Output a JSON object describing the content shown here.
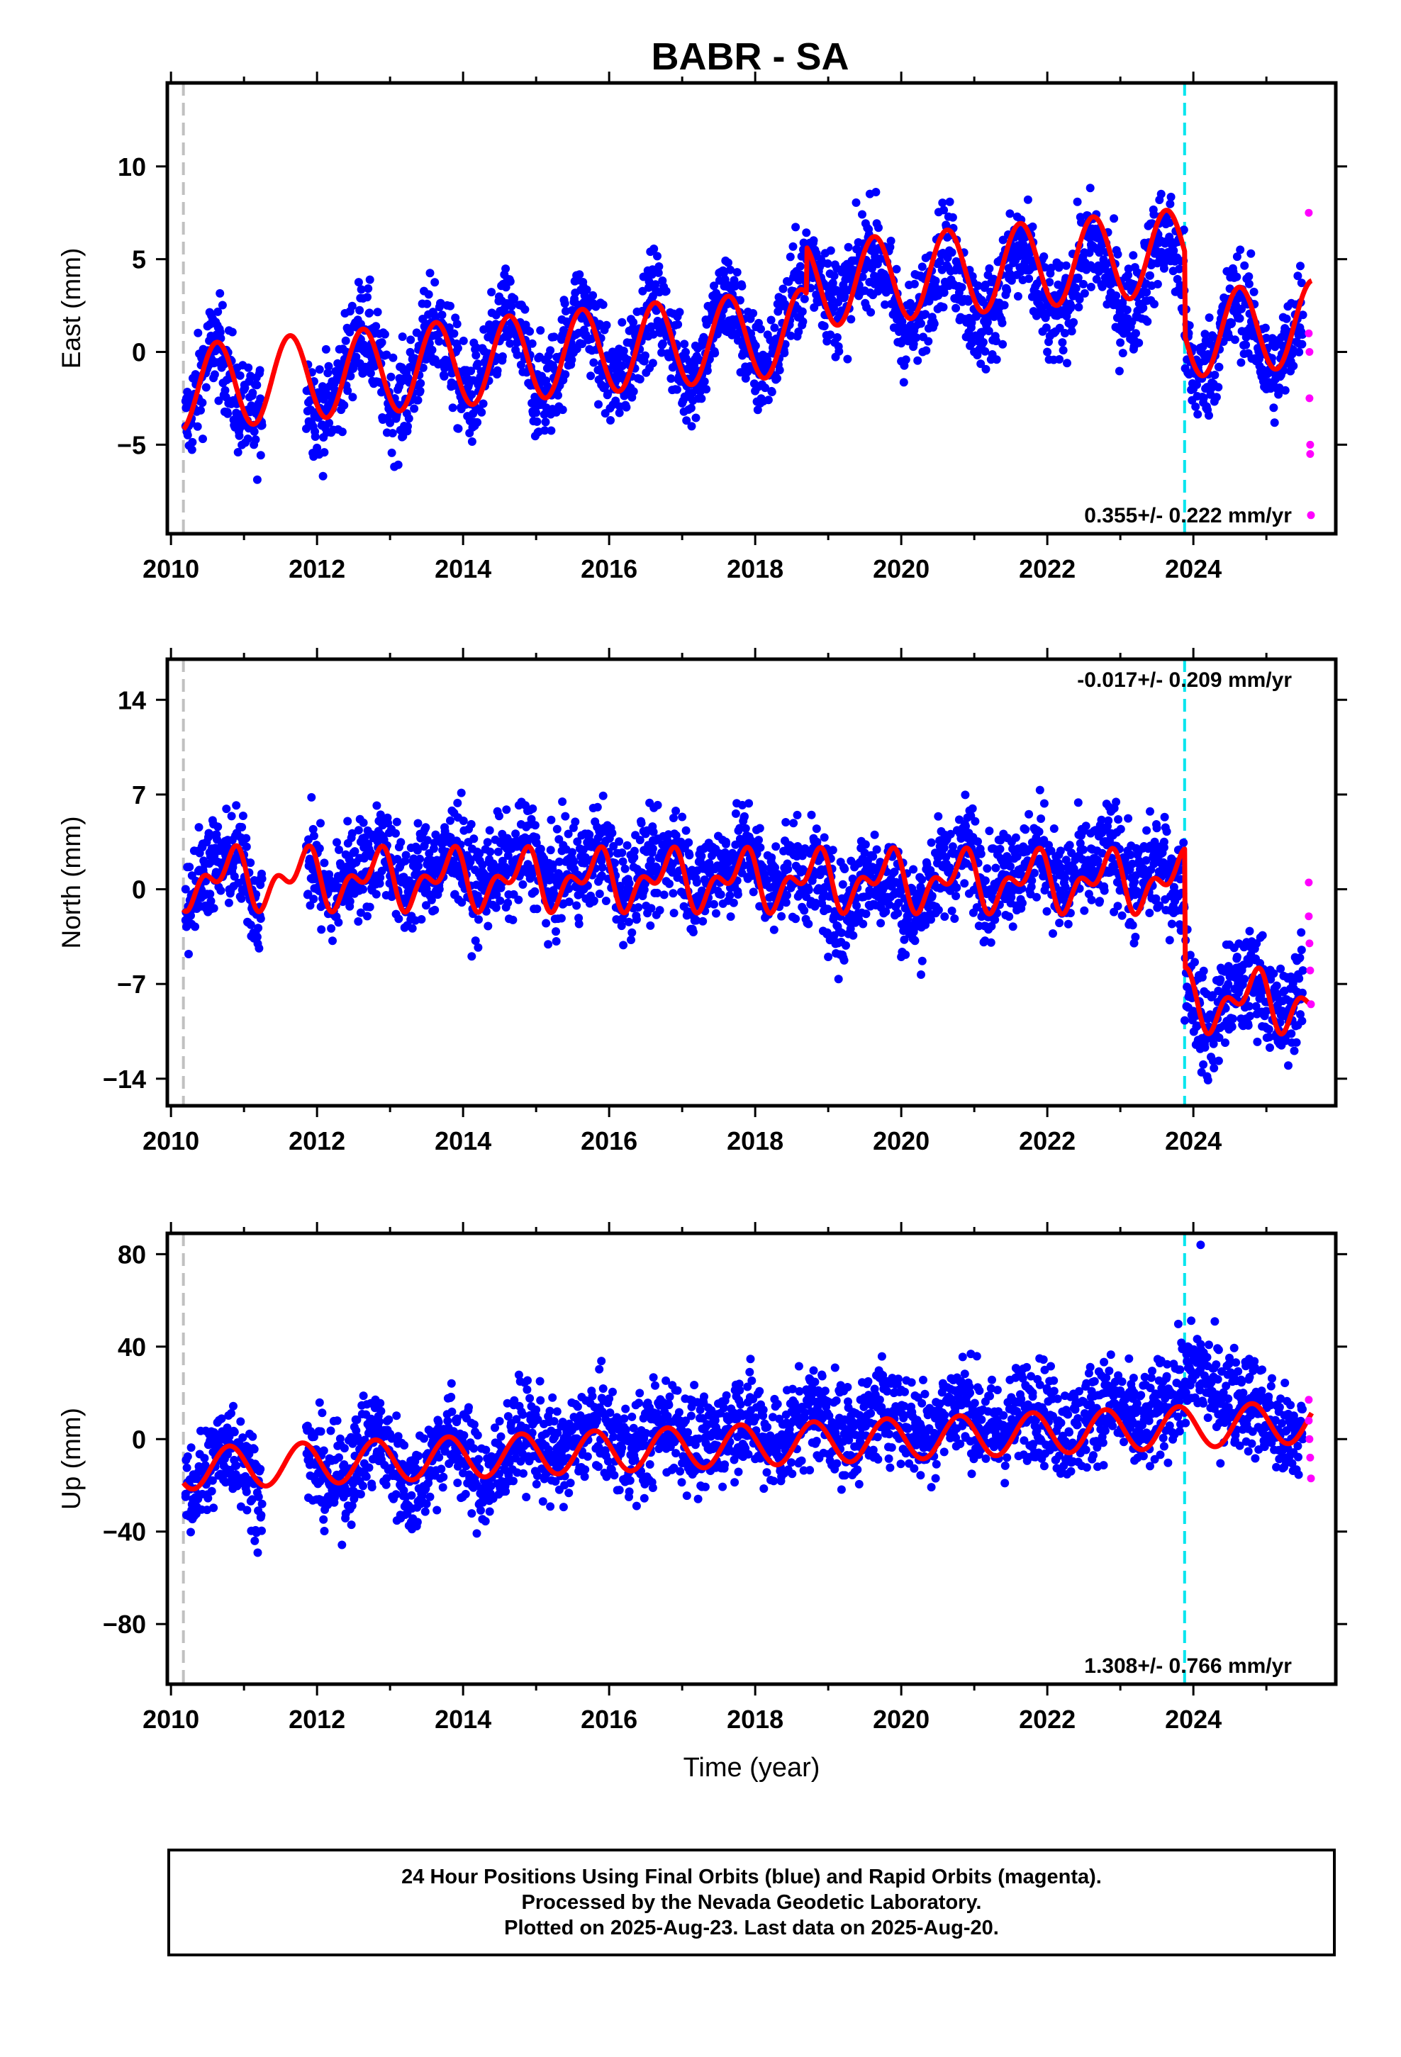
{
  "title": "BABR - SA",
  "colors": {
    "final_orbits": "#0000ff",
    "rapid_orbits": "#ff00ff",
    "model_fit": "#ff0000",
    "start_marker": "#c0c0c0",
    "equipment_change": "#00e5ee",
    "frame": "#000000"
  },
  "footer": {
    "line1": "24 Hour Positions Using Final Orbits (blue) and Rapid Orbits (magenta).",
    "line2": "Processed by the Nevada Geodetic Laboratory.",
    "line3": "Plotted on 2025-Aug-23. Last data on 2025-Aug-20."
  },
  "chart_data": [
    {
      "type": "scatter",
      "title": "BABR - SA",
      "ylabel": "East (mm)",
      "xlabel": "",
      "xlim": [
        2009.95,
        2025.95
      ],
      "ylim": [
        -9.8,
        14.5
      ],
      "xticks": [
        "2010",
        "2012",
        "2014",
        "2016",
        "2018",
        "2020",
        "2022",
        "2024"
      ],
      "yticks": [
        "10",
        "5",
        "0",
        "−5"
      ],
      "ytick_values": [
        10,
        5,
        0,
        -5
      ],
      "rate_label": "0.355+/- 0.222 mm/yr",
      "rate_position": "bottom-right",
      "grid": false,
      "start_line_x": 2010.17,
      "equipment_change_x": 2023.88,
      "series": [
        {
          "name": "Final Orbits (blue)",
          "kind": "points",
          "x": [
            2010.2,
            2010.6,
            2010.9,
            2011.2,
            2012.0,
            2012.4,
            2012.6,
            2013.0,
            2013.6,
            2014.0,
            2014.6,
            2015.0,
            2015.6,
            2016.0,
            2016.6,
            2017.0,
            2017.6,
            2018.0,
            2018.6,
            2018.9,
            2019.6,
            2020.0,
            2020.6,
            2021.0,
            2021.6,
            2022.0,
            2022.6,
            2023.0,
            2023.6,
            2024.0,
            2024.6,
            2025.0,
            2025.5
          ],
          "y": [
            -4.0,
            0.5,
            -4.0,
            -3.0,
            -3.5,
            0.0,
            1.5,
            -3.0,
            1.5,
            -2.5,
            2.0,
            -2.5,
            2.5,
            -1.5,
            3.0,
            -1.5,
            3.0,
            -1.0,
            4.0,
            5.0,
            4.5,
            -0.5,
            3.5,
            0.0,
            3.0,
            0.0,
            3.5,
            0.5,
            4.5,
            -2.0,
            2.0,
            -2.0,
            2.0
          ]
        },
        {
          "name": "Rapid Orbits (magenta)",
          "kind": "points",
          "x": [
            2025.58,
            2025.58,
            2025.59,
            2025.59,
            2025.6,
            2025.6,
            2025.61
          ],
          "y": [
            7.5,
            1.0,
            0.0,
            -2.5,
            -5.0,
            -5.5,
            -8.8
          ]
        },
        {
          "name": "Model fit",
          "kind": "fit",
          "offset": -2.0,
          "rate": 0.355,
          "annual_amp": 2.3,
          "annual_phase": 0.38,
          "semiannual_amp": 0.0,
          "semiannual_phase": 0.0,
          "steps": [
            {
              "x": 2018.7,
              "dy": 2.5
            },
            {
              "x": 2023.88,
              "dy": -4.5
            }
          ]
        }
      ]
    },
    {
      "type": "scatter",
      "title": "",
      "ylabel": "North (mm)",
      "xlabel": "",
      "xlim": [
        2009.95,
        2025.95
      ],
      "ylim": [
        -16.0,
        17.0
      ],
      "xticks": [
        "2010",
        "2012",
        "2014",
        "2016",
        "2018",
        "2020",
        "2022",
        "2024"
      ],
      "yticks": [
        "14",
        "7",
        "0",
        "−7",
        "−14"
      ],
      "ytick_values": [
        14,
        7,
        0,
        -7,
        -14
      ],
      "rate_label": "-0.017+/- 0.209 mm/yr",
      "rate_position": "top-right",
      "grid": false,
      "start_line_x": 2010.17,
      "equipment_change_x": 2023.88,
      "series": [
        {
          "name": "Final Orbits (blue)",
          "kind": "points",
          "x": [
            2010.2,
            2010.6,
            2011.0,
            2012.0,
            2012.6,
            2013.6,
            2014.6,
            2015.6,
            2016.6,
            2017.3,
            2017.6,
            2018.6,
            2019.0,
            2019.6,
            2020.0,
            2020.6,
            2021.6,
            2022.6,
            2023.6,
            2024.0,
            2024.2,
            2024.6,
            2025.0,
            2025.5
          ],
          "y": [
            0.0,
            4.0,
            0.0,
            0.0,
            3.5,
            3.0,
            3.0,
            3.0,
            3.0,
            3.0,
            3.5,
            3.0,
            -5.0,
            2.5,
            -5.0,
            3.5,
            3.0,
            3.0,
            3.5,
            -9.0,
            -11.0,
            -5.0,
            -9.0,
            -6.0
          ]
        },
        {
          "name": "Rapid Orbits (magenta)",
          "kind": "points",
          "x": [
            2025.58,
            2025.58,
            2025.59,
            2025.6,
            2025.61
          ],
          "y": [
            0.5,
            -2.0,
            -4.0,
            -6.0,
            -8.5
          ]
        },
        {
          "name": "Model fit",
          "kind": "fit",
          "offset": 0.8,
          "rate": -0.017,
          "annual_amp": 1.6,
          "annual_phase": 0.55,
          "semiannual_amp": 1.2,
          "semiannual_phase": 0.3,
          "steps": [
            {
              "x": 2023.88,
              "dy": -8.8
            }
          ]
        }
      ]
    },
    {
      "type": "scatter",
      "title": "",
      "ylabel": "Up (mm)",
      "xlabel": "Time (year)",
      "xlim": [
        2009.95,
        2025.95
      ],
      "ylim": [
        -106.0,
        89.0
      ],
      "xticks": [
        "2010",
        "2012",
        "2014",
        "2016",
        "2018",
        "2020",
        "2022",
        "2024"
      ],
      "yticks": [
        "80",
        "40",
        "0",
        "−40",
        "−80"
      ],
      "ytick_values": [
        80,
        40,
        0,
        -40,
        -80
      ],
      "rate_label": "1.308+/- 0.766 mm/yr",
      "rate_position": "bottom-right",
      "grid": false,
      "start_line_x": 2010.17,
      "equipment_change_x": 2023.88,
      "series": [
        {
          "name": "Final Orbits (blue)",
          "kind": "points",
          "x": [
            2010.2,
            2010.8,
            2011.2,
            2012.2,
            2012.8,
            2013.3,
            2013.8,
            2014.3,
            2014.8,
            2015.8,
            2016.8,
            2017.8,
            2018.8,
            2019.8,
            2020.8,
            2021.8,
            2022.8,
            2023.8,
            2024.1,
            2024.8,
            2025.5
          ],
          "y": [
            -25.0,
            2.0,
            -25.0,
            -20.0,
            5.0,
            -30.0,
            5.0,
            -25.0,
            5.0,
            10.0,
            10.0,
            15.0,
            20.0,
            25.0,
            25.0,
            20.0,
            20.0,
            30.0,
            84.0,
            15.0,
            0.0
          ]
        },
        {
          "name": "Rapid Orbits (magenta)",
          "kind": "points",
          "x": [
            2025.58,
            2025.58,
            2025.59,
            2025.6,
            2025.61
          ],
          "y": [
            17.0,
            8.0,
            0.0,
            -8.0,
            -17.0
          ]
        },
        {
          "name": "Model fit",
          "kind": "fit",
          "offset": -13.0,
          "rate": 1.308,
          "annual_amp": 9.0,
          "annual_phase": 0.55,
          "semiannual_amp": 0.0,
          "semiannual_phase": 0.0,
          "steps": []
        }
      ]
    }
  ]
}
